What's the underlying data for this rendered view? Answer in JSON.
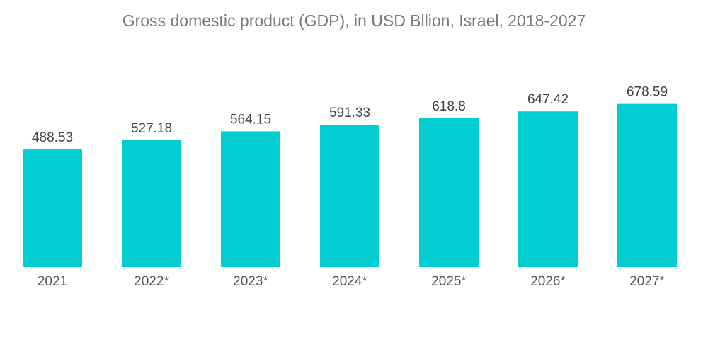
{
  "chart_data": {
    "type": "bar",
    "title": "Gross domestic product (GDP), in USD Bllion, Israel, 2018-2027",
    "categories": [
      "2021",
      "2022*",
      "2023*",
      "2024*",
      "2025*",
      "2026*",
      "2027*"
    ],
    "values": [
      488.53,
      527.18,
      564.15,
      591.33,
      618.8,
      647.42,
      678.59
    ],
    "value_labels": [
      "488.53",
      "527.18",
      "564.15",
      "591.33",
      "618.8",
      "647.42",
      "678.59"
    ],
    "xlabel": "",
    "ylabel": "",
    "ylim": [
      0,
      700
    ],
    "grid": false,
    "bar_color": "#00CED1"
  }
}
